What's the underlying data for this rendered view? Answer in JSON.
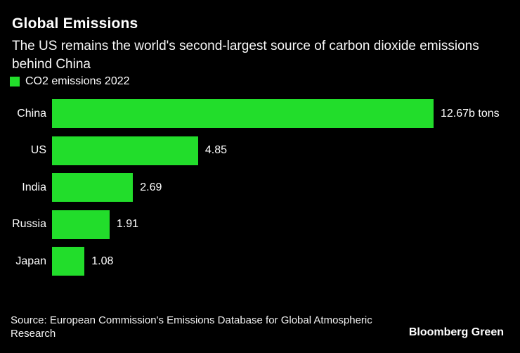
{
  "header": {
    "title": "Global Emissions",
    "subtitle": "The US remains the world's second-largest source of carbon dioxide emissions behind China"
  },
  "legend": {
    "swatch_icon": "green-square-icon",
    "label": "CO2 emissions 2022"
  },
  "chart_data": {
    "type": "bar",
    "orientation": "horizontal",
    "title": "Global Emissions",
    "series_name": "CO2 emissions 2022",
    "categories": [
      "China",
      "US",
      "India",
      "Russia",
      "Japan"
    ],
    "values": [
      12.67,
      4.85,
      2.69,
      1.91,
      1.08
    ],
    "value_labels": [
      "12.67b tons",
      "4.85",
      "2.69",
      "1.91",
      "1.08"
    ],
    "xlabel": "",
    "ylabel": "",
    "xlim": [
      0,
      12.67
    ],
    "grid": false,
    "legend_position": "top-left"
  },
  "colors": {
    "background": "#000000",
    "bar": "#22dd2b",
    "text": "#ffffff"
  },
  "footer": {
    "source": "Source: European Commission's Emissions Database for Global Atmospheric Research",
    "brand": "Bloomberg Green"
  }
}
